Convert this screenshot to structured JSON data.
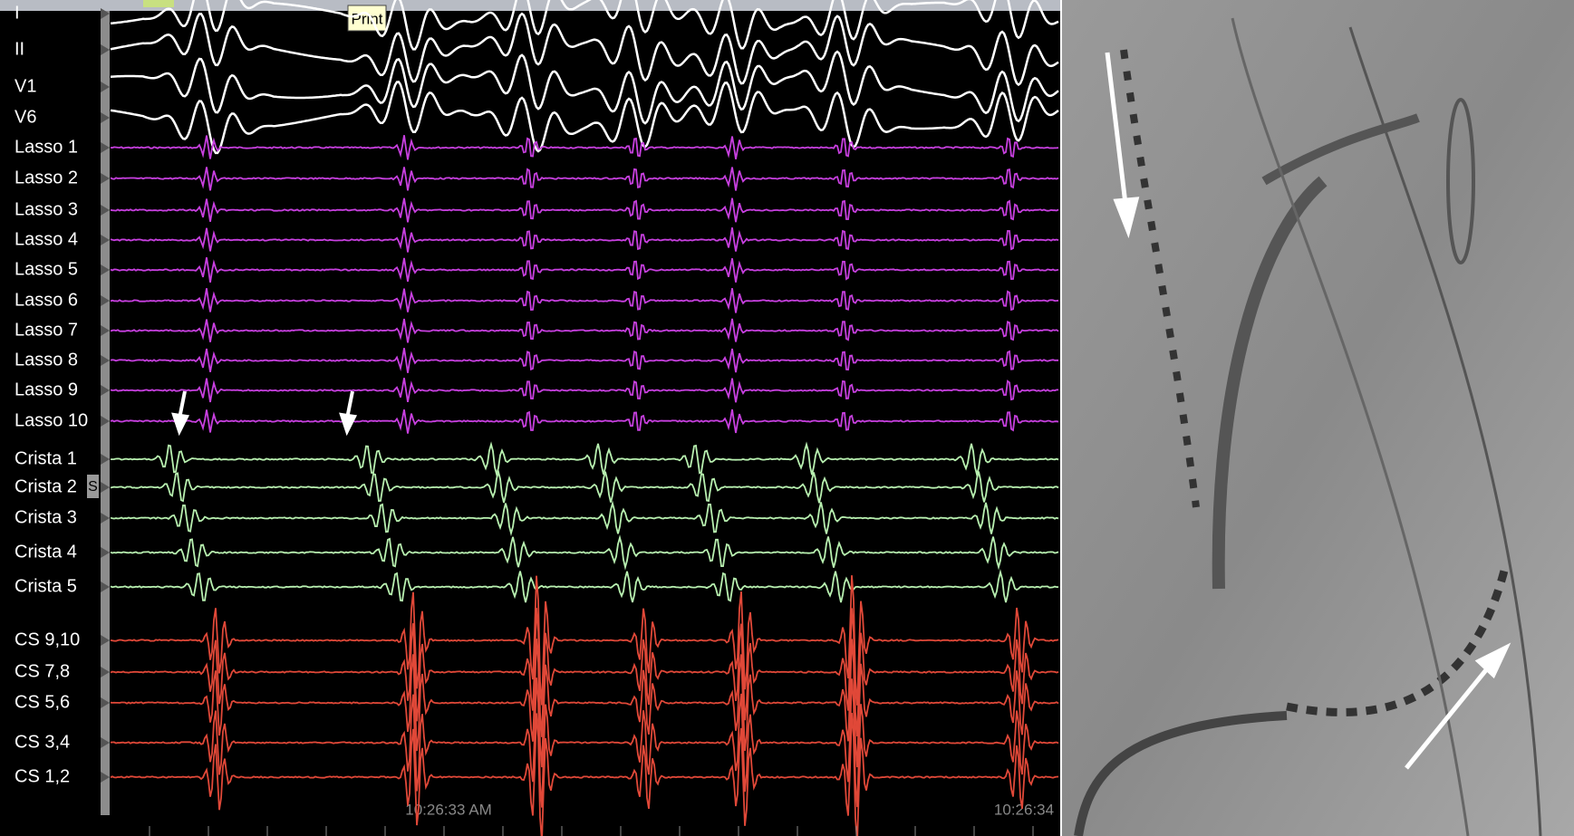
{
  "toolbar": {
    "tooltip": "Print"
  },
  "marker": "S",
  "timestamps": [
    "10:26:33 AM",
    "10:26:34"
  ],
  "channels": [
    {
      "label": "I",
      "color": "#ffffff"
    },
    {
      "label": "II",
      "color": "#ffffff"
    },
    {
      "label": "V1",
      "color": "#ffffff"
    },
    {
      "label": "V6",
      "color": "#ffffff"
    },
    {
      "label": "Lasso 1",
      "color": "#c840e0"
    },
    {
      "label": "Lasso 2",
      "color": "#c840e0"
    },
    {
      "label": "Lasso 3",
      "color": "#c840e0"
    },
    {
      "label": "Lasso 4",
      "color": "#c840e0"
    },
    {
      "label": "Lasso 5",
      "color": "#c840e0"
    },
    {
      "label": "Lasso 6",
      "color": "#c840e0"
    },
    {
      "label": "Lasso 7",
      "color": "#c840e0"
    },
    {
      "label": "Lasso 8",
      "color": "#c840e0"
    },
    {
      "label": "Lasso 9",
      "color": "#c840e0"
    },
    {
      "label": "Lasso 10",
      "color": "#c840e0"
    },
    {
      "label": "Crista 1",
      "color": "#b8f0b0"
    },
    {
      "label": "Crista 2",
      "color": "#b8f0b0"
    },
    {
      "label": "Crista 3",
      "color": "#b8f0b0"
    },
    {
      "label": "Crista 4",
      "color": "#b8f0b0"
    },
    {
      "label": "Crista 5",
      "color": "#b8f0b0"
    },
    {
      "label": "CS 9,10",
      "color": "#e04838"
    },
    {
      "label": "CS 7,8",
      "color": "#e04838"
    },
    {
      "label": "CS 5,6",
      "color": "#e04838"
    },
    {
      "label": "CS 3,4",
      "color": "#e04838"
    },
    {
      "label": "CS 1,2",
      "color": "#e04838"
    }
  ]
}
